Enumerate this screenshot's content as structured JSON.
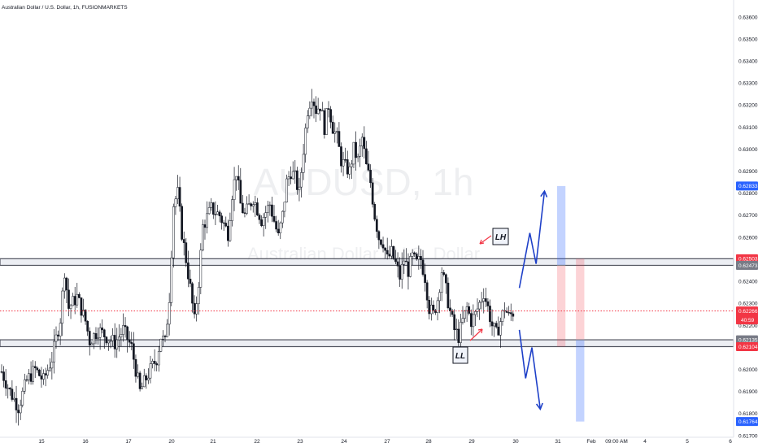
{
  "header": {
    "title": "Australian Dollar / U.S. Dollar, 1h, FUSIONMARKETS"
  },
  "watermark": {
    "symbol": "AUDUSD, 1h",
    "name": "Australian Dollar / U.S. Dollar"
  },
  "annotations": {
    "lh": "LH",
    "ll": "LL"
  },
  "colors": {
    "up": "#000000",
    "down": "#000000",
    "current": "#f23645",
    "blue": "#2962ff",
    "zone": "#b2b5be",
    "arrow": "#1e40c8"
  },
  "chart_data": {
    "type": "candlestick",
    "title": "Australian Dollar / U.S. Dollar, 1h, FUSIONMARKETS",
    "ylim": [
      0.617,
      0.636
    ],
    "y_ticks": [
      "0.63600",
      "0.63500",
      "0.63400",
      "0.63300",
      "0.63200",
      "0.63100",
      "0.63000",
      "0.62900",
      "0.62800",
      "0.62700",
      "0.62600",
      "0.62500",
      "0.62400",
      "0.62300",
      "0.62200",
      "0.62100",
      "0.62000",
      "0.61900",
      "0.61800",
      "0.61700"
    ],
    "x_ticks": [
      "15",
      "16",
      "17",
      "20",
      "21",
      "22",
      "23",
      "24",
      "27",
      "28",
      "29",
      "30",
      "31",
      "Feb",
      "09:00 AM",
      "4",
      "5",
      "6"
    ],
    "price_path": [
      {
        "x": 0,
        "y": 0.6199
      },
      {
        "x": 2,
        "y": 0.619
      },
      {
        "x": 4,
        "y": 0.6183
      },
      {
        "x": 6,
        "y": 0.6195
      },
      {
        "x": 8,
        "y": 0.62
      },
      {
        "x": 10,
        "y": 0.6195
      },
      {
        "x": 12,
        "y": 0.6205
      },
      {
        "x": 14,
        "y": 0.6223
      },
      {
        "x": 15,
        "y": 0.6245
      },
      {
        "x": 16,
        "y": 0.6228
      },
      {
        "x": 18,
        "y": 0.6233
      },
      {
        "x": 20,
        "y": 0.6222
      },
      {
        "x": 21,
        "y": 0.6213
      },
      {
        "x": 23,
        "y": 0.6218
      },
      {
        "x": 25,
        "y": 0.6215
      },
      {
        "x": 27,
        "y": 0.6212
      },
      {
        "x": 29,
        "y": 0.6218
      },
      {
        "x": 31,
        "y": 0.621
      },
      {
        "x": 33,
        "y": 0.619
      },
      {
        "x": 35,
        "y": 0.6198
      },
      {
        "x": 37,
        "y": 0.6205
      },
      {
        "x": 38,
        "y": 0.6215
      },
      {
        "x": 39,
        "y": 0.6212
      },
      {
        "x": 40,
        "y": 0.6233
      },
      {
        "x": 41,
        "y": 0.6275
      },
      {
        "x": 42,
        "y": 0.628
      },
      {
        "x": 43,
        "y": 0.6262
      },
      {
        "x": 44,
        "y": 0.625
      },
      {
        "x": 45,
        "y": 0.6237
      },
      {
        "x": 46,
        "y": 0.6222
      },
      {
        "x": 47,
        "y": 0.624
      },
      {
        "x": 48,
        "y": 0.6265
      },
      {
        "x": 50,
        "y": 0.6273
      },
      {
        "x": 52,
        "y": 0.627
      },
      {
        "x": 54,
        "y": 0.6262
      },
      {
        "x": 55,
        "y": 0.628
      },
      {
        "x": 56,
        "y": 0.629
      },
      {
        "x": 57,
        "y": 0.6275
      },
      {
        "x": 58,
        "y": 0.627
      },
      {
        "x": 60,
        "y": 0.6278
      },
      {
        "x": 62,
        "y": 0.6268
      },
      {
        "x": 64,
        "y": 0.6275
      },
      {
        "x": 66,
        "y": 0.626
      },
      {
        "x": 67,
        "y": 0.627
      },
      {
        "x": 68,
        "y": 0.6285
      },
      {
        "x": 69,
        "y": 0.629
      },
      {
        "x": 70,
        "y": 0.6287
      },
      {
        "x": 71,
        "y": 0.628
      },
      {
        "x": 72,
        "y": 0.63
      },
      {
        "x": 73,
        "y": 0.6318
      },
      {
        "x": 74,
        "y": 0.6325
      },
      {
        "x": 75,
        "y": 0.6318
      },
      {
        "x": 76,
        "y": 0.632
      },
      {
        "x": 77,
        "y": 0.631
      },
      {
        "x": 78,
        "y": 0.632
      },
      {
        "x": 79,
        "y": 0.631
      },
      {
        "x": 80,
        "y": 0.6305
      },
      {
        "x": 81,
        "y": 0.6295
      },
      {
        "x": 82,
        "y": 0.6292
      },
      {
        "x": 83,
        "y": 0.629
      },
      {
        "x": 84,
        "y": 0.63
      },
      {
        "x": 85,
        "y": 0.6295
      },
      {
        "x": 86,
        "y": 0.6305
      },
      {
        "x": 87,
        "y": 0.6292
      },
      {
        "x": 88,
        "y": 0.6285
      },
      {
        "x": 89,
        "y": 0.627
      },
      {
        "x": 90,
        "y": 0.626
      },
      {
        "x": 91,
        "y": 0.6258
      },
      {
        "x": 92,
        "y": 0.625
      },
      {
        "x": 93,
        "y": 0.6253
      },
      {
        "x": 94,
        "y": 0.6248
      },
      {
        "x": 95,
        "y": 0.6242
      },
      {
        "x": 96,
        "y": 0.625
      },
      {
        "x": 97,
        "y": 0.6245
      },
      {
        "x": 98,
        "y": 0.6251
      },
      {
        "x": 99,
        "y": 0.6248
      },
      {
        "x": 100,
        "y": 0.625
      },
      {
        "x": 101,
        "y": 0.6242
      },
      {
        "x": 102,
        "y": 0.6228
      },
      {
        "x": 103,
        "y": 0.6225
      },
      {
        "x": 104,
        "y": 0.6232
      },
      {
        "x": 105,
        "y": 0.6245
      },
      {
        "x": 106,
        "y": 0.6236
      },
      {
        "x": 107,
        "y": 0.6226
      },
      {
        "x": 108,
        "y": 0.6218
      },
      {
        "x": 109,
        "y": 0.6215
      },
      {
        "x": 110,
        "y": 0.6222
      },
      {
        "x": 111,
        "y": 0.6228
      },
      {
        "x": 112,
        "y": 0.6222
      },
      {
        "x": 113,
        "y": 0.6225
      },
      {
        "x": 114,
        "y": 0.623
      },
      {
        "x": 115,
        "y": 0.6235
      },
      {
        "x": 116,
        "y": 0.6228
      },
      {
        "x": 117,
        "y": 0.622
      },
      {
        "x": 118,
        "y": 0.6216
      },
      {
        "x": 119,
        "y": 0.6222
      },
      {
        "x": 120,
        "y": 0.6228
      },
      {
        "x": 121,
        "y": 0.6224
      },
      {
        "x": 122,
        "y": 0.6226
      }
    ],
    "x_index_range": [
      0,
      175
    ],
    "levels": [
      {
        "name": "resistance-zone",
        "from": 0.62473,
        "to": 0.62503
      },
      {
        "name": "support-zone",
        "from": 0.62104,
        "to": 0.62135
      },
      {
        "name": "current",
        "value": 0.62266
      }
    ],
    "price_labels": [
      {
        "value": 0.62833,
        "text": "0.62833",
        "color": "#2962ff"
      },
      {
        "value": 0.62503,
        "text": "0.62503",
        "color": "#f23645"
      },
      {
        "value": 0.62473,
        "text": "0.62473",
        "color": "#787b86"
      },
      {
        "value": 0.62266,
        "text": "0.62266",
        "color": "#f23645"
      },
      {
        "value": 0.62135,
        "text": "0.62135",
        "color": "#787b86"
      },
      {
        "value": 0.62104,
        "text": "0.62104",
        "color": "#f23645"
      },
      {
        "value": 0.61764,
        "text": "0.61764",
        "color": "#2962ff"
      }
    ],
    "countdown": "40:59",
    "projection_boxes": [
      {
        "x0": 132.5,
        "x1": 134.5,
        "top": 0.62833,
        "mid": 0.62473,
        "bottom": 0.62104
      },
      {
        "x0": 137,
        "x1": 139,
        "top": 0.62503,
        "mid": 0.62135,
        "bottom": 0.61764
      }
    ],
    "projection_paths": [
      [
        {
          "x": 123.5,
          "y": 0.6237
        },
        {
          "x": 126,
          "y": 0.6262
        },
        {
          "x": 127.5,
          "y": 0.6248
        },
        {
          "x": 129.5,
          "y": 0.6281
        }
      ],
      [
        {
          "x": 123.5,
          "y": 0.6218
        },
        {
          "x": 125,
          "y": 0.6196
        },
        {
          "x": 126.5,
          "y": 0.621
        },
        {
          "x": 128.5,
          "y": 0.6182
        }
      ]
    ]
  }
}
